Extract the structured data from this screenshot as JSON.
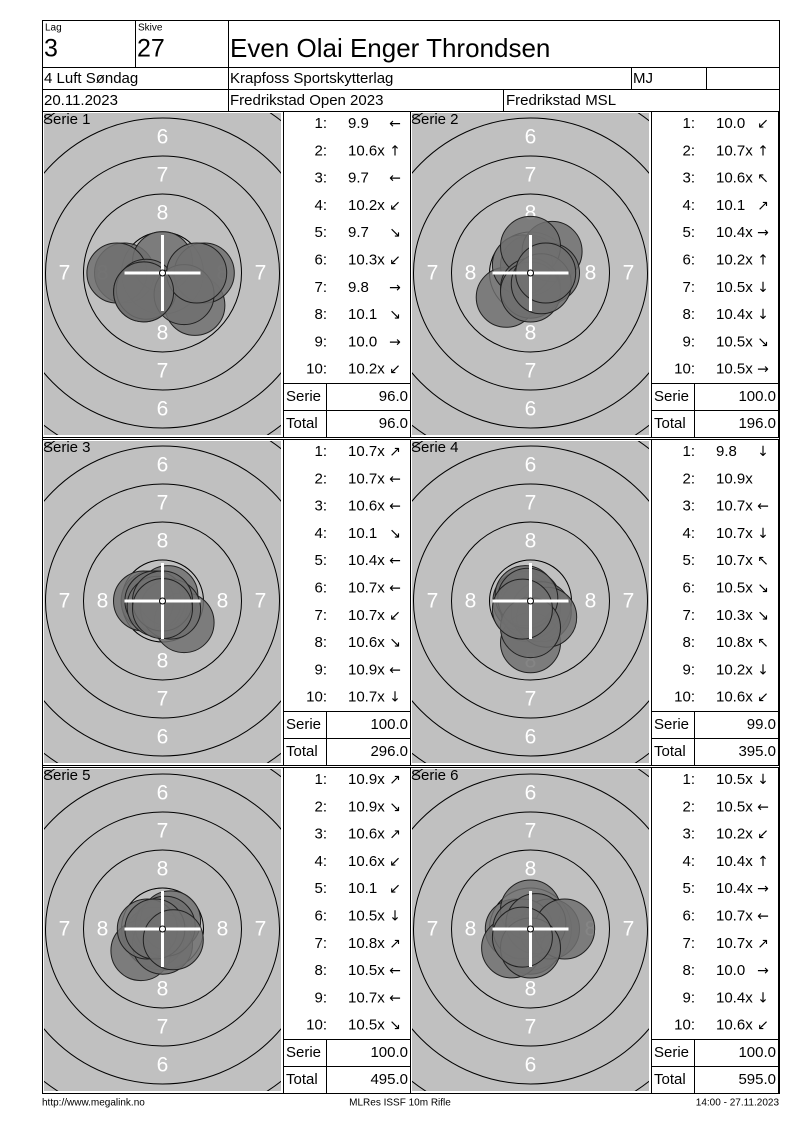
{
  "header": {
    "lag_label": "Lag",
    "lag": "3",
    "skive_label": "Skive",
    "skive": "27",
    "name": "Even Olai Enger Throndsen",
    "class": "4 Luft Søndag",
    "club": "Krapfoss Sportskytterlag",
    "code": "MJ",
    "date": "20.11.2023",
    "competition": "Fredrikstad Open 2023",
    "venue": "Fredrikstad MSL"
  },
  "rings": [
    "6",
    "7",
    "8"
  ],
  "series": [
    {
      "title": "Serie 1",
      "shots": [
        {
          "n": "1:",
          "score": "9.9",
          "dir": "←"
        },
        {
          "n": "2:",
          "score": "10.6x",
          "dir": "↑"
        },
        {
          "n": "3:",
          "score": "9.7",
          "dir": "←"
        },
        {
          "n": "4:",
          "score": "10.2x",
          "dir": "↙"
        },
        {
          "n": "5:",
          "score": "9.7",
          "dir": "↘"
        },
        {
          "n": "6:",
          "score": "10.3x",
          "dir": "↙"
        },
        {
          "n": "7:",
          "score": "9.8",
          "dir": "→"
        },
        {
          "n": "8:",
          "score": "10.1",
          "dir": "↘"
        },
        {
          "n": "9:",
          "score": "10.0",
          "dir": "→"
        },
        {
          "n": "10:",
          "score": "10.2x",
          "dir": "↙"
        }
      ],
      "serie_label": "Serie",
      "serie": "96.0",
      "total_label": "Total",
      "total": "96.0"
    },
    {
      "title": "Serie 2",
      "shots": [
        {
          "n": "1:",
          "score": "10.0",
          "dir": "↙"
        },
        {
          "n": "2:",
          "score": "10.7x",
          "dir": "↑"
        },
        {
          "n": "3:",
          "score": "10.6x",
          "dir": "↖"
        },
        {
          "n": "4:",
          "score": "10.1",
          "dir": "↗"
        },
        {
          "n": "5:",
          "score": "10.4x",
          "dir": "→"
        },
        {
          "n": "6:",
          "score": "10.2x",
          "dir": "↑"
        },
        {
          "n": "7:",
          "score": "10.5x",
          "dir": "↓"
        },
        {
          "n": "8:",
          "score": "10.4x",
          "dir": "↓"
        },
        {
          "n": "9:",
          "score": "10.5x",
          "dir": "↘"
        },
        {
          "n": "10:",
          "score": "10.5x",
          "dir": "→"
        }
      ],
      "serie_label": "Serie",
      "serie": "100.0",
      "total_label": "Total",
      "total": "196.0"
    },
    {
      "title": "Serie 3",
      "shots": [
        {
          "n": "1:",
          "score": "10.7x",
          "dir": "↗"
        },
        {
          "n": "2:",
          "score": "10.7x",
          "dir": "←"
        },
        {
          "n": "3:",
          "score": "10.6x",
          "dir": "←"
        },
        {
          "n": "4:",
          "score": "10.1",
          "dir": "↘"
        },
        {
          "n": "5:",
          "score": "10.4x",
          "dir": "←"
        },
        {
          "n": "6:",
          "score": "10.7x",
          "dir": "←"
        },
        {
          "n": "7:",
          "score": "10.7x",
          "dir": "↙"
        },
        {
          "n": "8:",
          "score": "10.6x",
          "dir": "↘"
        },
        {
          "n": "9:",
          "score": "10.9x",
          "dir": "←"
        },
        {
          "n": "10:",
          "score": "10.7x",
          "dir": "↓"
        }
      ],
      "serie_label": "Serie",
      "serie": "100.0",
      "total_label": "Total",
      "total": "296.0"
    },
    {
      "title": "Serie 4",
      "shots": [
        {
          "n": "1:",
          "score": "9.8",
          "dir": "↓"
        },
        {
          "n": "2:",
          "score": "10.9x"
        },
        {
          "n": "3:",
          "score": "10.7x",
          "dir": "←"
        },
        {
          "n": "4:",
          "score": "10.7x",
          "dir": "↓"
        },
        {
          "n": "5:",
          "score": "10.7x",
          "dir": "↖"
        },
        {
          "n": "6:",
          "score": "10.5x",
          "dir": "↘"
        },
        {
          "n": "7:",
          "score": "10.3x",
          "dir": "↘"
        },
        {
          "n": "8:",
          "score": "10.8x",
          "dir": "↖"
        },
        {
          "n": "9:",
          "score": "10.2x",
          "dir": "↓"
        },
        {
          "n": "10:",
          "score": "10.6x",
          "dir": "↙"
        }
      ],
      "serie_label": "Serie",
      "serie": "99.0",
      "total_label": "Total",
      "total": "395.0"
    },
    {
      "title": "Serie 5",
      "shots": [
        {
          "n": "1:",
          "score": "10.9x",
          "dir": "↗"
        },
        {
          "n": "2:",
          "score": "10.9x",
          "dir": "↘"
        },
        {
          "n": "3:",
          "score": "10.6x",
          "dir": "↗"
        },
        {
          "n": "4:",
          "score": "10.6x",
          "dir": "↙"
        },
        {
          "n": "5:",
          "score": "10.1",
          "dir": "↙"
        },
        {
          "n": "6:",
          "score": "10.5x",
          "dir": "↓"
        },
        {
          "n": "7:",
          "score": "10.8x",
          "dir": "↗"
        },
        {
          "n": "8:",
          "score": "10.5x",
          "dir": "←"
        },
        {
          "n": "9:",
          "score": "10.7x",
          "dir": "←"
        },
        {
          "n": "10:",
          "score": "10.5x",
          "dir": "↘"
        }
      ],
      "serie_label": "Serie",
      "serie": "100.0",
      "total_label": "Total",
      "total": "495.0"
    },
    {
      "title": "Serie 6",
      "shots": [
        {
          "n": "1:",
          "score": "10.5x",
          "dir": "↓"
        },
        {
          "n": "2:",
          "score": "10.5x",
          "dir": "←"
        },
        {
          "n": "3:",
          "score": "10.2x",
          "dir": "↙"
        },
        {
          "n": "4:",
          "score": "10.4x",
          "dir": "↑"
        },
        {
          "n": "5:",
          "score": "10.4x",
          "dir": "→"
        },
        {
          "n": "6:",
          "score": "10.7x",
          "dir": "←"
        },
        {
          "n": "7:",
          "score": "10.7x",
          "dir": "↗"
        },
        {
          "n": "8:",
          "score": "10.0",
          "dir": "→"
        },
        {
          "n": "9:",
          "score": "10.4x",
          "dir": "↓"
        },
        {
          "n": "10:",
          "score": "10.6x",
          "dir": "↙"
        }
      ],
      "serie_label": "Serie",
      "serie": "100.0",
      "total_label": "Total",
      "total": "595.0"
    }
  ],
  "footer": {
    "url": "http://www.megalink.no",
    "software": "MLRes ISSF 10m Rifle",
    "timestamp": "14:00 - 27.11.2023"
  }
}
